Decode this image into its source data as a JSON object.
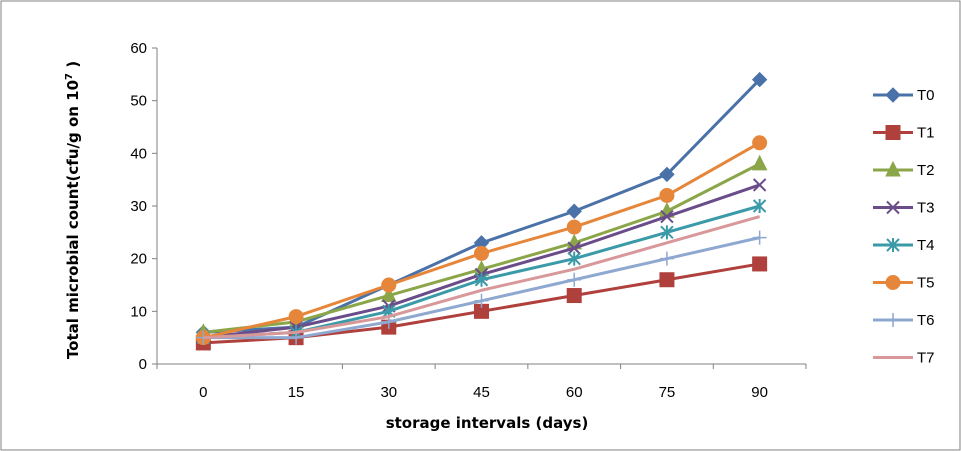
{
  "chart_data": {
    "type": "line",
    "title": "",
    "xlabel": "storage intervals (days)",
    "ylabel": "Total microbial count(cfu/g on 10",
    "ylabel_sup": "7",
    "ylabel_suffix": " )",
    "categories": [
      "0",
      "15",
      "30",
      "45",
      "60",
      "75",
      "90"
    ],
    "ylim": [
      0,
      60
    ],
    "yticks": [
      "0",
      "10",
      "20",
      "30",
      "40",
      "50",
      "60"
    ],
    "grid": false,
    "legend": "right",
    "series": [
      {
        "name": "T0",
        "color": "#4A72A8",
        "marker": "diamond",
        "values": [
          6,
          7,
          15,
          23,
          29,
          36,
          54
        ]
      },
      {
        "name": "T1",
        "color": "#B0403C",
        "marker": "square",
        "values": [
          4,
          5,
          7,
          10,
          13,
          16,
          19
        ]
      },
      {
        "name": "T2",
        "color": "#8BA648",
        "marker": "triangle",
        "values": [
          6,
          8,
          13,
          18,
          23,
          29,
          38
        ]
      },
      {
        "name": "T3",
        "color": "#6A4C8A",
        "marker": "x",
        "values": [
          5,
          7,
          11,
          17,
          22,
          28,
          34
        ]
      },
      {
        "name": "T4",
        "color": "#3A9AA8",
        "marker": "asterisk",
        "values": [
          5,
          6,
          10,
          16,
          20,
          25,
          30
        ]
      },
      {
        "name": "T5",
        "color": "#E5863A",
        "marker": "circle",
        "values": [
          5,
          9,
          15,
          21,
          26,
          32,
          42
        ]
      },
      {
        "name": "T6",
        "color": "#8EA8D0",
        "marker": "plus",
        "values": [
          5,
          5,
          8,
          12,
          16,
          20,
          24
        ]
      },
      {
        "name": "T7",
        "color": "#D8989A",
        "marker": "none",
        "values": [
          5,
          6,
          9,
          14,
          18,
          23,
          28
        ]
      }
    ]
  }
}
